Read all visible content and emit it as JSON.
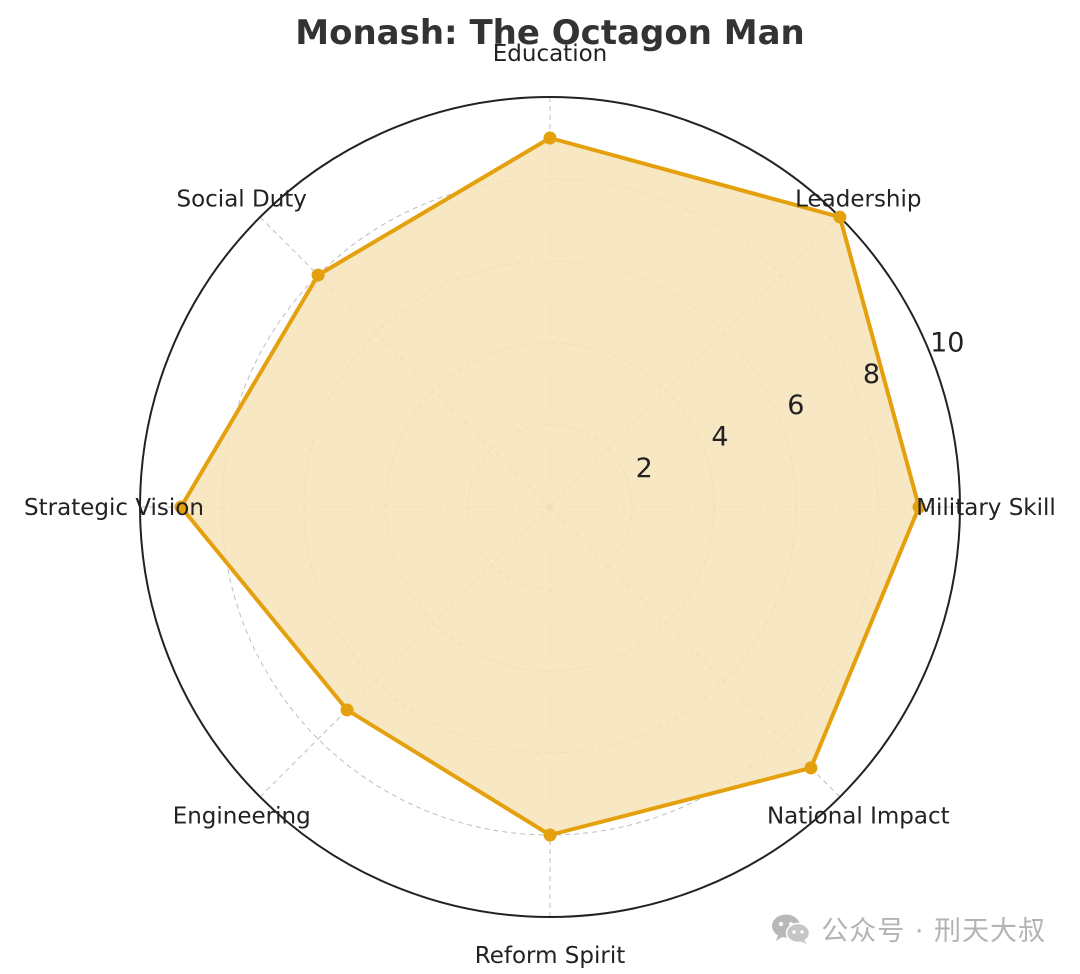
{
  "chart_data": {
    "type": "radar",
    "title": "Monash: The Octagon Man",
    "categories": [
      "Military Skill",
      "Leadership",
      "Education",
      "Social Duty",
      "Strategic Vision",
      "Engineering",
      "Reform Spirit",
      "National Impact"
    ],
    "values": [
      9,
      10,
      9,
      8,
      9,
      7,
      8,
      9
    ],
    "rlim": [
      0,
      10
    ],
    "r_ticks": [
      2,
      4,
      6,
      8,
      10
    ],
    "grid": true,
    "colors": {
      "line": "#E5A00D",
      "fill": "#F6E3B8",
      "grid": "#bdbdbd",
      "frame": "#222222"
    }
  },
  "watermark": {
    "text": "公众号 · 刑天大叔",
    "icon": "wechat-icon"
  }
}
